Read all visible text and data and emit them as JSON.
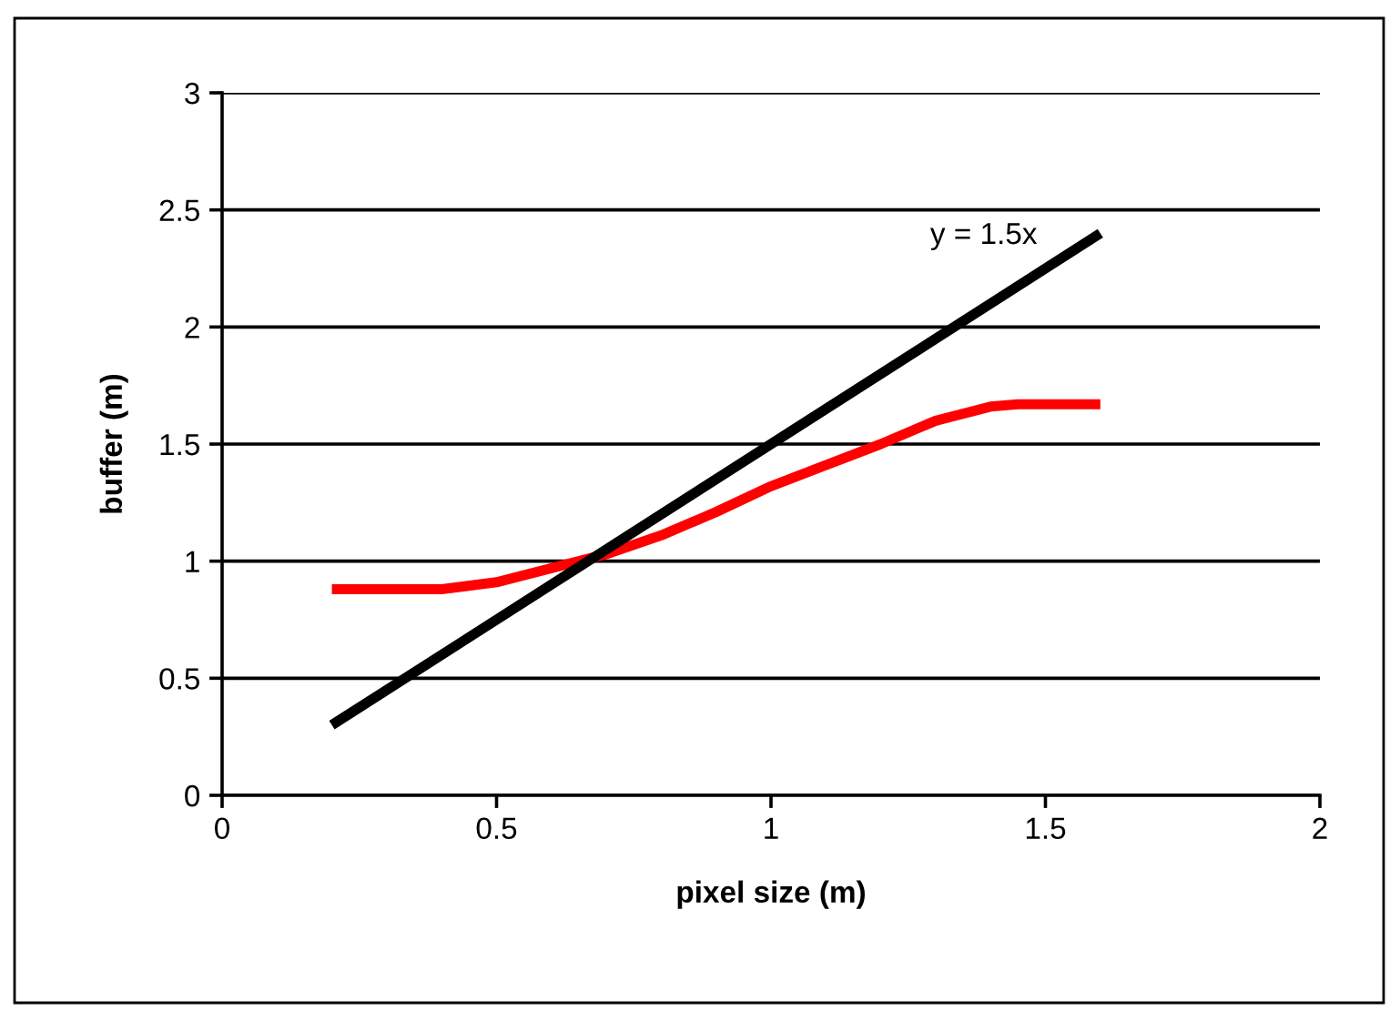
{
  "chart_data": {
    "type": "line",
    "xlabel": "pixel size (m)",
    "ylabel": "buffer (m)",
    "xlim": [
      0,
      2
    ],
    "xticks": [
      0,
      0.5,
      1,
      1.5,
      2
    ],
    "ylim": [
      0,
      3
    ],
    "yticks": [
      0,
      0.5,
      1,
      1.5,
      2,
      2.5,
      3
    ],
    "grid": "y",
    "legend": false,
    "marker": "none",
    "line_style": "solid",
    "series": [
      {
        "color": "#ff0000",
        "x": [
          0.2,
          0.4,
          0.5,
          0.6,
          0.7,
          0.8,
          0.9,
          1.0,
          1.1,
          1.2,
          1.3,
          1.4,
          1.45,
          1.6
        ],
        "values": [
          0.88,
          0.88,
          0.91,
          0.97,
          1.03,
          1.11,
          1.21,
          1.32,
          1.41,
          1.5,
          1.6,
          1.66,
          1.67,
          1.67
        ]
      },
      {
        "color": "#000000",
        "x": [
          0.2,
          0.6,
          1.0,
          1.4,
          1.6
        ],
        "values": [
          0.3,
          0.9,
          1.5,
          2.1,
          2.4
        ]
      }
    ],
    "annotations": [
      "y = 1.5x"
    ]
  }
}
